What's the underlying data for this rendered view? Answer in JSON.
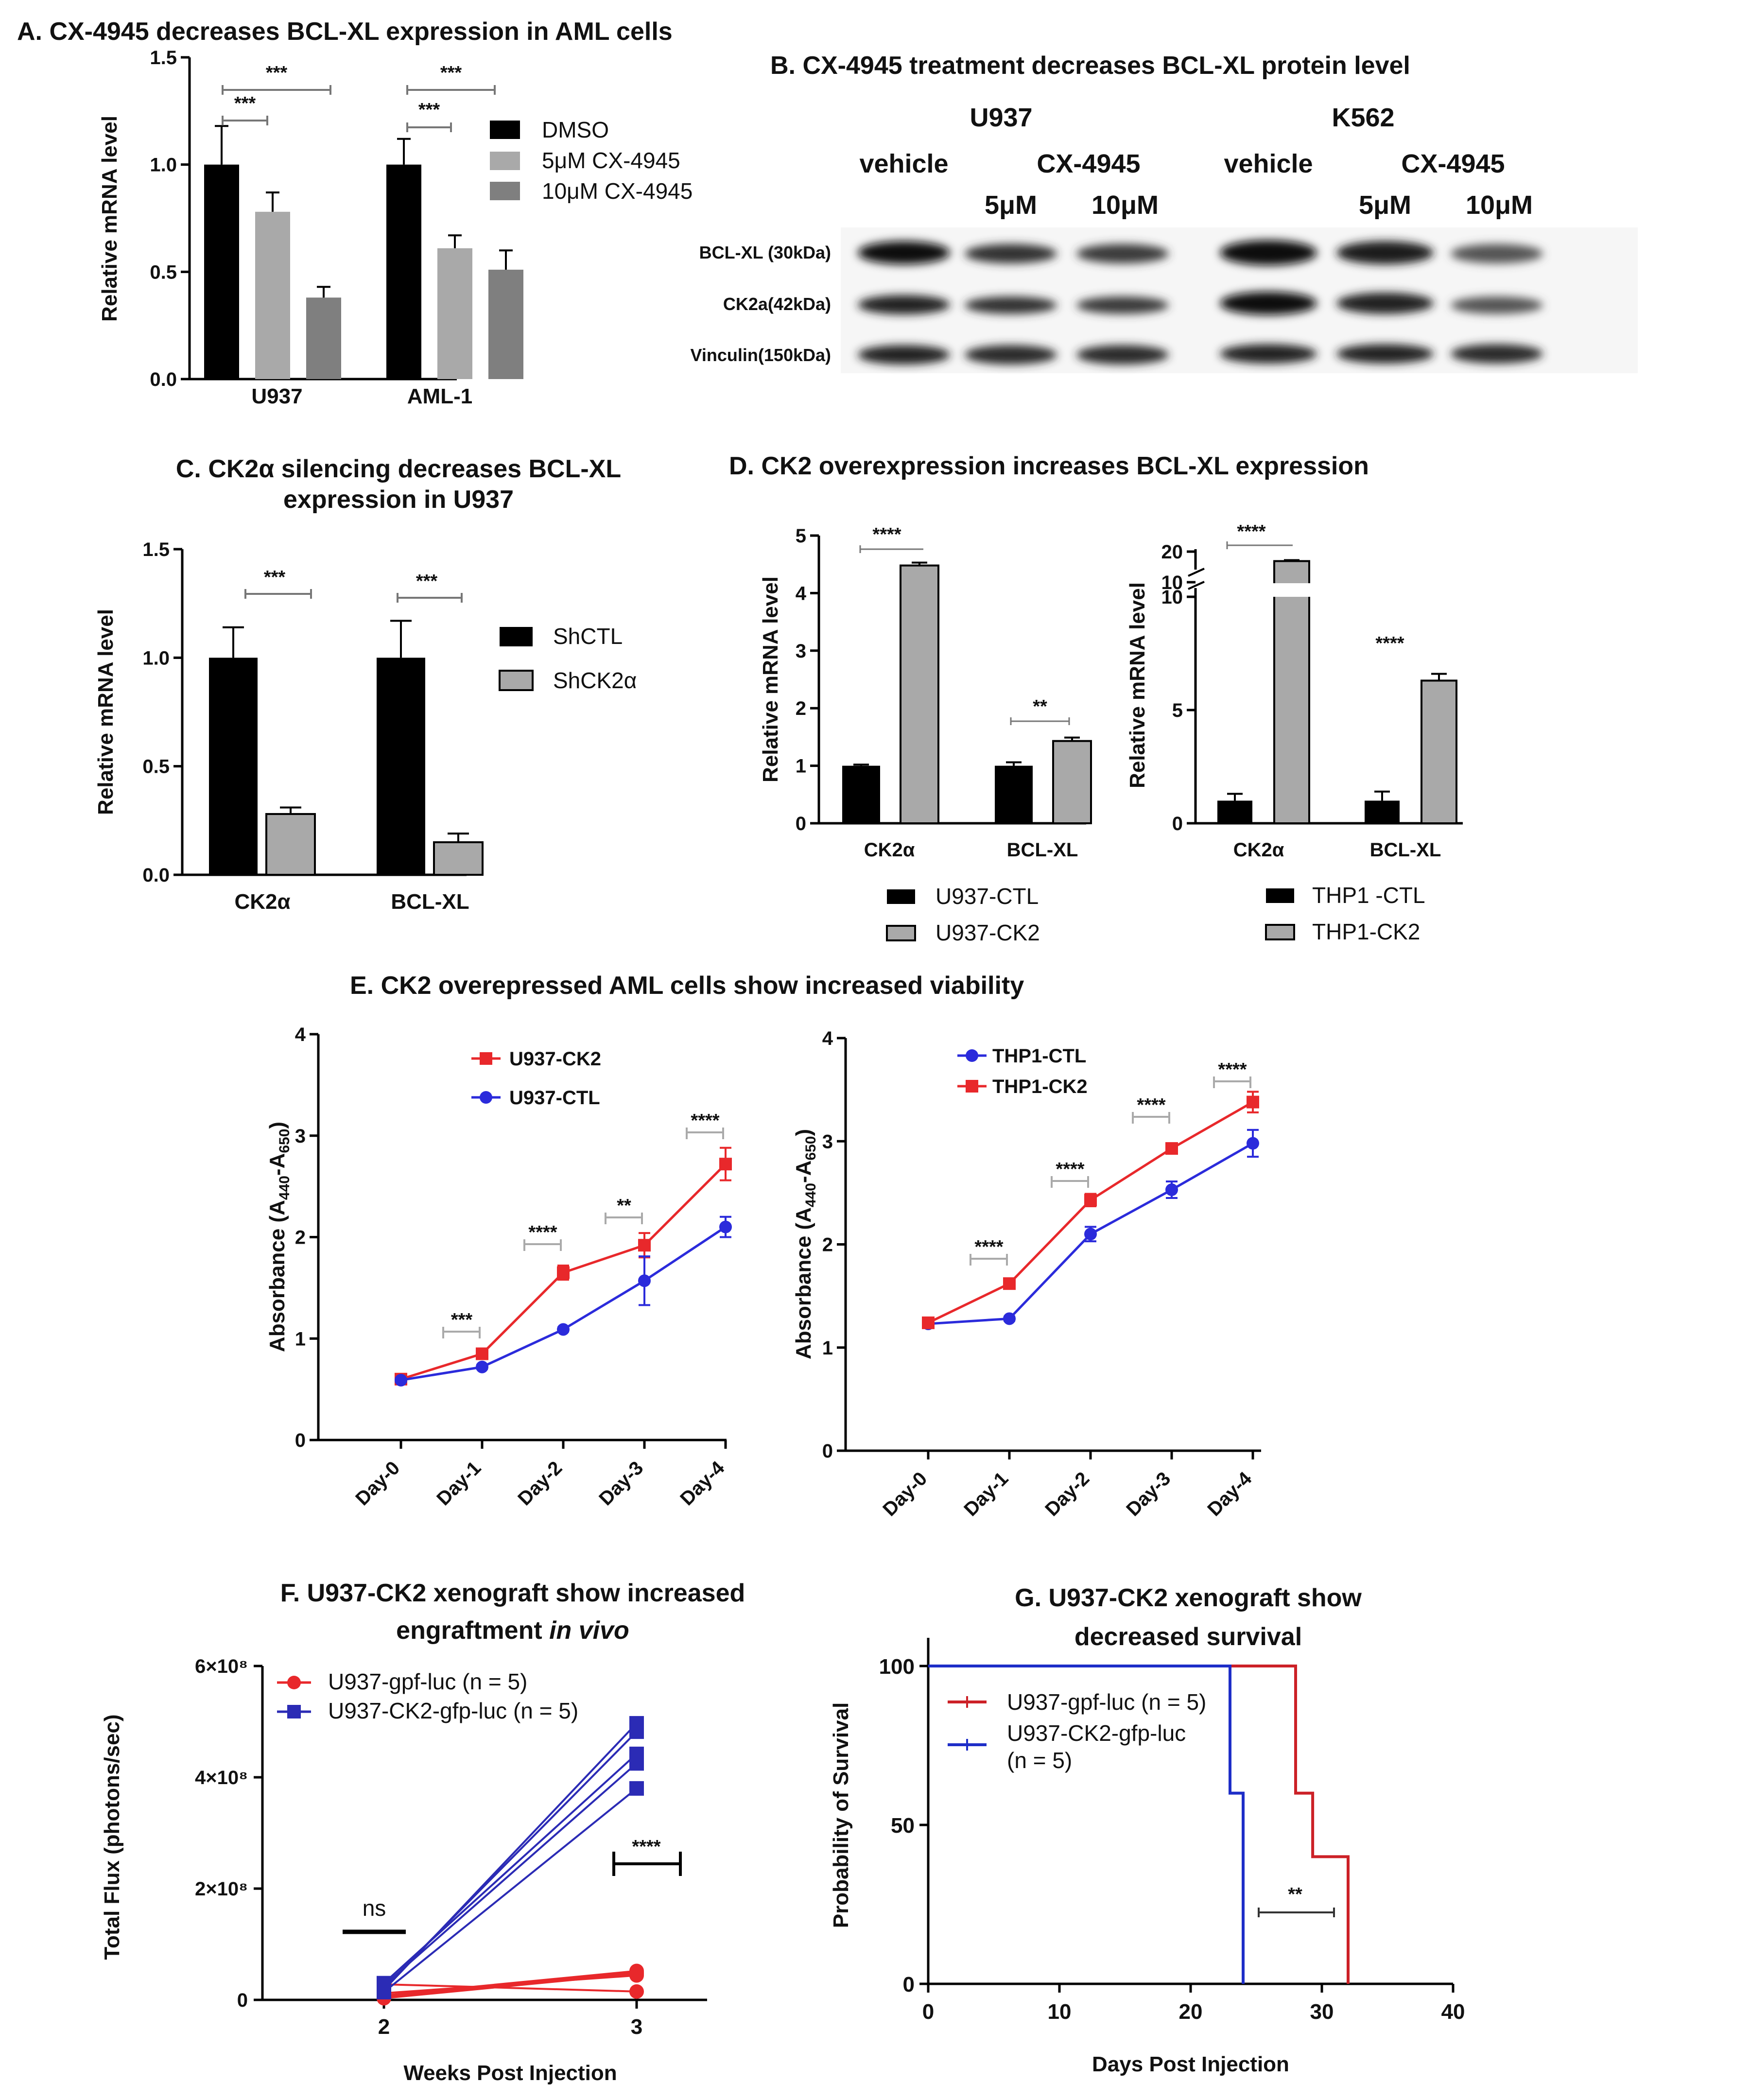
{
  "panel_titles": {
    "A": "A. CX-4945 decreases BCL-XL expression in AML cells",
    "B": "B. CX-4945 treatment decreases BCL-XL protein level",
    "C1": "C. CK2α silencing decreases BCL-XL",
    "C2": "expression in U937",
    "D": "D. CK2 overexpression increases BCL-XL expression",
    "E": "E. CK2 overepressed AML cells show increased viability",
    "F1": "F. U937-CK2 xenograft show increased",
    "F2": "engraftment in vivo",
    "G1": "G.  U937-CK2 xenograft show",
    "G2": "decreased survival"
  },
  "western_blot": {
    "cell_lines": [
      "U937",
      "K562"
    ],
    "treatments": [
      "vehicle",
      "CX-4945",
      "vehicle",
      "CX-4945"
    ],
    "doses": [
      "5μM",
      "10μM",
      "5μM",
      "10μM"
    ],
    "rows": [
      "BCL-XL (30kDa)",
      "CK2a(42kDa)",
      "Vinculin(150kDa)"
    ]
  },
  "chart_data": [
    {
      "id": "A",
      "type": "bar",
      "categories": [
        "U937",
        "AML-1"
      ],
      "series": [
        {
          "name": "DMSO",
          "color": "#000000",
          "values": [
            1.0,
            1.0
          ],
          "errors": [
            0.18,
            0.12
          ]
        },
        {
          "name": "5μM CX-4945",
          "color": "#a9a9a9",
          "values": [
            0.78,
            0.61
          ],
          "errors": [
            0.09,
            0.06
          ]
        },
        {
          "name": "10μM CX-4945",
          "color": "#7f7f7f",
          "values": [
            0.38,
            0.51
          ],
          "errors": [
            0.05,
            0.09
          ]
        }
      ],
      "ylabel": "Relative mRNA level",
      "ylim": [
        0,
        1.5
      ],
      "yticks": [
        "0.0",
        "0.5",
        "1.0",
        "1.5"
      ],
      "significance": [
        "***",
        "***",
        "***",
        "***"
      ]
    },
    {
      "id": "C",
      "type": "bar",
      "categories": [
        "CK2α",
        "BCL-XL"
      ],
      "series": [
        {
          "name": "ShCTL",
          "color": "#000000",
          "values": [
            1.0,
            1.0
          ],
          "errors": [
            0.14,
            0.17
          ]
        },
        {
          "name": "ShCK2α",
          "color": "#a9a9a9",
          "values": [
            0.28,
            0.15
          ],
          "errors": [
            0.03,
            0.04
          ]
        }
      ],
      "ylabel": "Relative mRNA level",
      "ylim": [
        0,
        1.5
      ],
      "yticks": [
        "0.0",
        "0.5",
        "1.0",
        "1.5"
      ],
      "significance": [
        "***",
        "***"
      ]
    },
    {
      "id": "D1",
      "type": "bar",
      "categories": [
        "CK2α",
        "BCL-XL"
      ],
      "series": [
        {
          "name": "U937-CTL",
          "color": "#000000",
          "values": [
            1.0,
            1.0
          ],
          "errors": [
            0.02,
            0.06
          ]
        },
        {
          "name": "U937-CK2",
          "color": "#a9a9a9",
          "values": [
            4.48,
            1.43
          ],
          "errors": [
            0.05,
            0.06
          ]
        }
      ],
      "ylabel": "Relative mRNA level",
      "ylim": [
        0,
        5
      ],
      "yticks": [
        "0",
        "1",
        "2",
        "3",
        "4",
        "5"
      ],
      "significance": [
        "****",
        "**"
      ]
    },
    {
      "id": "D2",
      "type": "bar",
      "categories": [
        "CK2α",
        "BCL-XL"
      ],
      "series": [
        {
          "name": "THP1 -CTL",
          "color": "#000000",
          "values": [
            1.0,
            1.0
          ],
          "errors": [
            0.3,
            0.4
          ]
        },
        {
          "name": "THP1-CK2",
          "color": "#a9a9a9",
          "values": [
            17.0,
            6.3
          ],
          "errors": [
            0.3,
            0.3
          ]
        }
      ],
      "ylabel": "Relative mRNA level",
      "ylim": [
        0,
        20
      ],
      "broken_axis": [
        10,
        10
      ],
      "yticks": [
        "0",
        "5",
        "10",
        "10",
        "20"
      ],
      "significance": [
        "****",
        "****"
      ]
    },
    {
      "id": "E1",
      "type": "line",
      "x": [
        "Day-0",
        "Day-1",
        "Day-2",
        "Day-3",
        "Day-4"
      ],
      "series": [
        {
          "name": "U937-CK2",
          "color": "#e8282b",
          "values": [
            0.6,
            0.85,
            1.65,
            1.92,
            2.72
          ],
          "errors": [
            0.02,
            0.04,
            0.07,
            0.12,
            0.16
          ]
        },
        {
          "name": "U937-CTL",
          "color": "#2b2bdb",
          "values": [
            0.59,
            0.72,
            1.09,
            1.57,
            2.1
          ],
          "errors": [
            0.02,
            0.02,
            0.02,
            0.24,
            0.1
          ]
        }
      ],
      "ylabel": "Absorbance (A440-A650)",
      "ylim": [
        0,
        4
      ],
      "yticks": [
        "0",
        "1",
        "2",
        "3",
        "4"
      ],
      "significance": [
        "***",
        "****",
        "**",
        "****"
      ]
    },
    {
      "id": "E2",
      "type": "line",
      "x": [
        "Day-0",
        "Day-1",
        "Day-2",
        "Day-3",
        "Day-4"
      ],
      "series": [
        {
          "name": "THP1-CTL",
          "color": "#2b2bdb",
          "values": [
            1.23,
            1.28,
            2.1,
            2.53,
            2.98
          ],
          "errors": [
            0.02,
            0.02,
            0.07,
            0.08,
            0.13
          ]
        },
        {
          "name": "THP1-CK2",
          "color": "#e8282b",
          "values": [
            1.24,
            1.62,
            2.43,
            2.93,
            3.38
          ],
          "errors": [
            0.02,
            0.04,
            0.06,
            0.04,
            0.1
          ]
        }
      ],
      "ylabel": "Absorbance (A440-A650)",
      "ylim": [
        0,
        4
      ],
      "yticks": [
        "0",
        "1",
        "2",
        "3",
        "4"
      ],
      "significance": [
        "****",
        "****",
        "****",
        "****"
      ]
    },
    {
      "id": "F",
      "type": "scatter",
      "x": [
        2,
        3
      ],
      "xticks": [
        "2",
        "3"
      ],
      "series": [
        {
          "name": "U937-gpf-luc (n = 5)",
          "color": "#e8282b",
          "marker": "circle",
          "values": [
            [
              6000000.0,
              49000000.0
            ],
            [
              12000000.0,
              44000000.0
            ],
            [
              28000000.0,
              15000000.0
            ],
            [
              3000000.0,
              47000000.0
            ],
            [
              8000000.0,
              52000000.0
            ]
          ]
        },
        {
          "name": "U937-CK2-gfp-luc (n = 5)",
          "color": "#2b2bb5",
          "marker": "square",
          "values": [
            [
              18000000.0,
              497000000.0
            ],
            [
              22000000.0,
              482000000.0
            ],
            [
              30000000.0,
              442000000.0
            ],
            [
              26000000.0,
              425000000.0
            ],
            [
              14000000.0,
              380000000.0
            ]
          ]
        }
      ],
      "xlabel": "Weeks Post Injection",
      "ylabel": "Total Flux (photons/sec)",
      "ylim": [
        0,
        600000000.0
      ],
      "yticks": [
        "0",
        "2×10⁸",
        "4×10⁸",
        "6×10⁸"
      ],
      "significance": [
        "ns",
        "****"
      ]
    },
    {
      "id": "G",
      "type": "line",
      "x": [
        0,
        10,
        20,
        30,
        40
      ],
      "xticks": [
        "0",
        "10",
        "20",
        "30",
        "40"
      ],
      "series": [
        {
          "name": "U937-gpf-luc (n = 5)",
          "color": "#cc2127",
          "steps": [
            [
              0,
              100
            ],
            [
              28,
              100
            ],
            [
              28,
              60
            ],
            [
              29.3,
              60
            ],
            [
              29.3,
              40
            ],
            [
              32,
              40
            ],
            [
              32,
              0
            ]
          ]
        },
        {
          "name": "U937-CK2-gfp-luc (n = 5)",
          "color": "#1e2ec8",
          "steps": [
            [
              0,
              100
            ],
            [
              23,
              100
            ],
            [
              23,
              60
            ],
            [
              24,
              60
            ],
            [
              24,
              0
            ]
          ]
        }
      ],
      "xlabel": "Days Post Injection",
      "ylabel": "Probability of Survival",
      "ylim": [
        0,
        100
      ],
      "yticks": [
        "0",
        "50",
        "100"
      ],
      "significance": [
        "**"
      ]
    }
  ]
}
